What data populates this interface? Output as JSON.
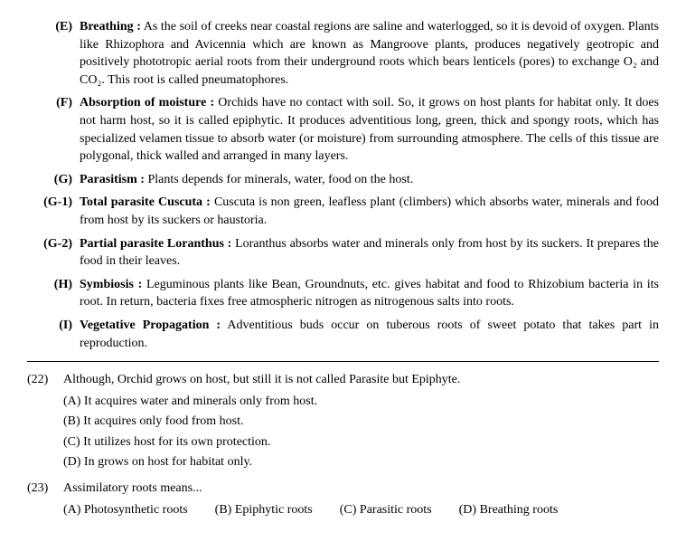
{
  "sections": {
    "E": {
      "label": "(E)",
      "title": "Breathing :",
      "text": " As the soil of creeks near coastal regions are saline and waterlogged, so it is devoid of oxygen. Plants like Rhizophora and Avicennia which are known as Mangroove plants, produces negatively geotropic and positively phototropic aerial roots from their underground roots which bears lenticels (pores) to exchange O₂ and CO₂. This root is called pneumatophores."
    },
    "F": {
      "label": "(F)",
      "title": "Absorption of moisture :",
      "text": " Orchids have no contact with soil. So, it grows on host plants for habitat only. It does not harm host, so it is called epiphytic. It produces adventitious long, green, thick and spongy roots, which has specialized velamen tissue to absorb water (or moisture) from surrounding atmosphere. The cells of this tissue are polygonal, thick walled and arranged in many layers."
    },
    "G": {
      "label": "(G)",
      "title": "Parasitism :",
      "text": " Plants depends for minerals, water, food on the host."
    },
    "G1": {
      "label": "(G-1)",
      "title": "Total parasite Cuscuta :",
      "text": " Cuscuta is non green, leafless plant (climbers) which absorbs water, minerals and food from host by its suckers or haustoria."
    },
    "G2": {
      "label": "(G-2)",
      "title": "Partial parasite Loranthus :",
      "text": " Loranthus absorbs water and minerals only from host by its suckers. It prepares the food in their leaves."
    },
    "H": {
      "label": "(H)",
      "title": "Symbiosis :",
      "text": " Leguminous plants like Bean, Groundnuts, etc. gives habitat and food to Rhizobium bacteria in its root. In return, bacteria fixes free atmospheric nitrogen as nitrogenous salts into roots."
    },
    "I": {
      "label": "(I)",
      "title": "Vegetative Propagation :",
      "text": " Adventitious buds occur on tuberous roots of sweet potato that takes part in reproduction."
    }
  },
  "questions": {
    "q22": {
      "num": "(22)",
      "text": "Although, Orchid grows on host, but still it is not called Parasite but Epiphyte.",
      "opts": {
        "A": "(A) It acquires water and minerals only from host.",
        "B": "(B) It acquires only food from host.",
        "C": "(C) It utilizes host for its own protection.",
        "D": "(D) In grows on host for habitat only."
      }
    },
    "q23": {
      "num": "(23)",
      "text": "Assimilatory roots means...",
      "opts": {
        "A": "(A) Photosynthetic roots",
        "B": "(B) Epiphytic roots",
        "C": "(C) Parasitic roots",
        "D": "(D) Breathing roots"
      }
    }
  }
}
